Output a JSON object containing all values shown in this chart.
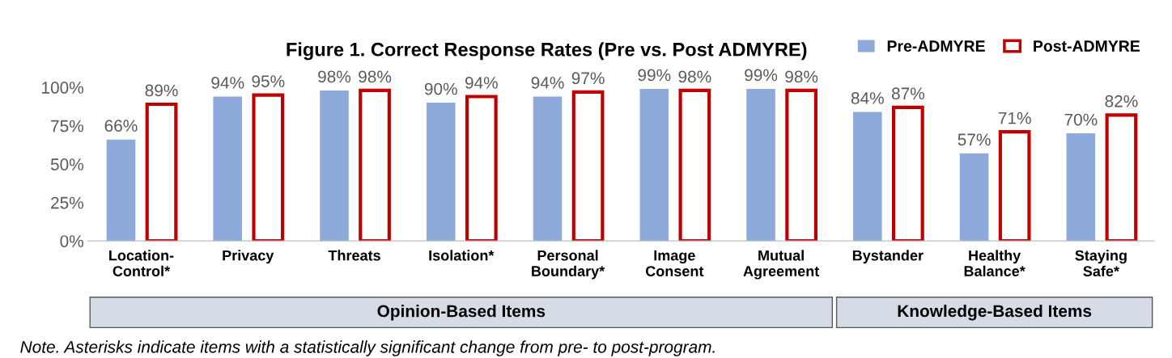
{
  "chart_data": {
    "type": "bar",
    "title": "Figure 1. Correct Response Rates (Pre vs. Post ADMYRE)",
    "categories": [
      "Location-\nControl*",
      "Privacy",
      "Threats",
      "Isolation*",
      "Personal\nBoundary*",
      "Image\nConsent",
      "Mutual\nAgreement",
      "Bystander",
      "Healthy\nBalance*",
      "Staying\nSafe*"
    ],
    "series": [
      {
        "name": "Pre-ADMYRE",
        "color": "#8eaadb",
        "values": [
          66,
          94,
          98,
          90,
          94,
          99,
          99,
          84,
          57,
          70
        ],
        "value_labels": [
          "66%",
          "94%",
          "98%",
          "90%",
          "94%",
          "99%",
          "99%",
          "84%",
          "57%",
          "70%"
        ]
      },
      {
        "name": "Post-ADMYRE",
        "color": "#c00000",
        "values": [
          89,
          95,
          98,
          94,
          97,
          98,
          98,
          87,
          71,
          82
        ],
        "value_labels": [
          "89%",
          "95%",
          "98%",
          "94%",
          "97%",
          "98%",
          "98%",
          "87%",
          "71%",
          "82%"
        ]
      }
    ],
    "ylim": [
      0,
      100
    ],
    "yticks": [
      {
        "value": 0,
        "label": "0%"
      },
      {
        "value": 25,
        "label": "25%"
      },
      {
        "value": 50,
        "label": "50%"
      },
      {
        "value": 75,
        "label": "75%"
      },
      {
        "value": 100,
        "label": "100%"
      }
    ],
    "grid": false,
    "legend": "top right",
    "annotations": [
      "Opinion-Based Items",
      "Knowledge-Based Items",
      "Note. Asterisks indicate items with a statistically significant change from pre- to post-program."
    ]
  }
}
